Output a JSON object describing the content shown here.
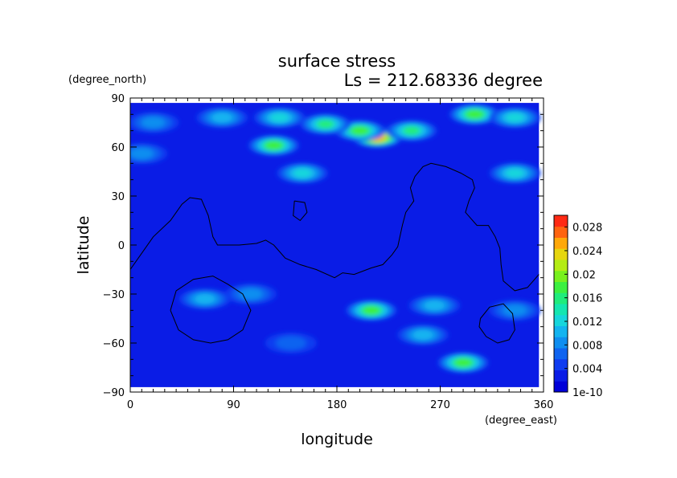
{
  "chart_data": {
    "type": "heatmap",
    "title": "surface stress",
    "subtitle": "Ls = 212.68336 degree",
    "xlabel": "longitude",
    "ylabel": "latitude",
    "x_units": "(degree_east)",
    "y_units": "(degree_north)",
    "xlim": [
      0,
      360
    ],
    "ylim": [
      -90,
      90
    ],
    "x_ticks": [
      0,
      90,
      180,
      270,
      360
    ],
    "x_tick_labels": [
      "0",
      "90",
      "180",
      "270",
      "360"
    ],
    "y_ticks": [
      90,
      60,
      30,
      0,
      -30,
      -60,
      -90
    ],
    "y_tick_labels": [
      "90",
      "60",
      "30",
      "0",
      "−30",
      "−60",
      "−90"
    ],
    "data_extent": {
      "lon": [
        0,
        356
      ],
      "lat": [
        -87,
        87
      ]
    },
    "colorbar": {
      "min": 0,
      "max": 0.03,
      "ticks": [
        0,
        0.004,
        0.008,
        0.012,
        0.016,
        0.02,
        0.024,
        0.028
      ],
      "tick_labels": [
        "1e-10",
        "0.004",
        "0.008",
        "0.012",
        "0.016",
        "0.02",
        "0.024",
        "0.028"
      ],
      "colors": [
        "#0000d8",
        "#0a1ce6",
        "#0f3cf0",
        "#0f64f0",
        "#0f8ef0",
        "#13b4f0",
        "#16d6dc",
        "#14e6b0",
        "#20ec7c",
        "#3cf040",
        "#78f01e",
        "#b4ec14",
        "#e6d60f",
        "#ffa80a",
        "#ff6410",
        "#ff2a14"
      ]
    },
    "grid": false,
    "hotspots": [
      {
        "lon": 215,
        "lat": 66,
        "value": 0.025
      },
      {
        "lon": 200,
        "lat": 70,
        "value": 0.017
      },
      {
        "lon": 245,
        "lat": 70,
        "value": 0.014
      },
      {
        "lon": 170,
        "lat": 74,
        "value": 0.015
      },
      {
        "lon": 130,
        "lat": 78,
        "value": 0.012
      },
      {
        "lon": 80,
        "lat": 78,
        "value": 0.01
      },
      {
        "lon": 20,
        "lat": 75,
        "value": 0.009
      },
      {
        "lon": 300,
        "lat": 80,
        "value": 0.016
      },
      {
        "lon": 335,
        "lat": 78,
        "value": 0.013
      },
      {
        "lon": 125,
        "lat": 61,
        "value": 0.018
      },
      {
        "lon": 150,
        "lat": 44,
        "value": 0.012
      },
      {
        "lon": 335,
        "lat": 44,
        "value": 0.012
      },
      {
        "lon": 10,
        "lat": 56,
        "value": 0.008
      },
      {
        "lon": 65,
        "lat": -33,
        "value": 0.01
      },
      {
        "lon": 105,
        "lat": -30,
        "value": 0.009
      },
      {
        "lon": 210,
        "lat": -40,
        "value": 0.016
      },
      {
        "lon": 265,
        "lat": -37,
        "value": 0.01
      },
      {
        "lon": 255,
        "lat": -55,
        "value": 0.011
      },
      {
        "lon": 290,
        "lat": -72,
        "value": 0.017
      },
      {
        "lon": 335,
        "lat": -40,
        "value": 0.008
      },
      {
        "lon": 140,
        "lat": -60,
        "value": 0.007
      }
    ],
    "coastlines": [
      [
        [
          0,
          -15
        ],
        [
          10,
          -5
        ],
        [
          20,
          5
        ],
        [
          35,
          15
        ],
        [
          45,
          25
        ],
        [
          52,
          29
        ],
        [
          62,
          28
        ],
        [
          68,
          18
        ],
        [
          72,
          5
        ],
        [
          76,
          0
        ],
        [
          95,
          0
        ],
        [
          110,
          1
        ],
        [
          118,
          3
        ],
        [
          125,
          0
        ],
        [
          135,
          -8
        ],
        [
          148,
          -12
        ],
        [
          162,
          -15
        ],
        [
          178,
          -20
        ],
        [
          185,
          -17
        ],
        [
          195,
          -18
        ],
        [
          210,
          -14
        ],
        [
          220,
          -12
        ],
        [
          228,
          -6
        ],
        [
          233,
          -1
        ],
        [
          237,
          12
        ],
        [
          240,
          20
        ],
        [
          247,
          27
        ],
        [
          244,
          35
        ],
        [
          248,
          42
        ],
        [
          255,
          48
        ],
        [
          262,
          50
        ],
        [
          275,
          48
        ],
        [
          288,
          44
        ],
        [
          298,
          40
        ],
        [
          300,
          35
        ],
        [
          295,
          27
        ],
        [
          292,
          20
        ],
        [
          302,
          12
        ],
        [
          312,
          12
        ],
        [
          318,
          5
        ],
        [
          322,
          -2
        ],
        [
          323,
          -12
        ],
        [
          325,
          -22
        ],
        [
          335,
          -28
        ],
        [
          346,
          -26
        ],
        [
          356,
          -18
        ]
      ],
      [
        [
          143,
          27
        ],
        [
          152,
          26
        ],
        [
          154,
          20
        ],
        [
          148,
          15
        ],
        [
          142,
          18
        ],
        [
          143,
          27
        ]
      ],
      [
        [
          35,
          -40
        ],
        [
          40,
          -28
        ],
        [
          55,
          -21
        ],
        [
          72,
          -19
        ],
        [
          85,
          -24
        ],
        [
          98,
          -30
        ],
        [
          105,
          -40
        ],
        [
          98,
          -52
        ],
        [
          85,
          -58
        ],
        [
          70,
          -60
        ],
        [
          55,
          -58
        ],
        [
          42,
          -52
        ],
        [
          35,
          -40
        ]
      ],
      [
        [
          305,
          -45
        ],
        [
          313,
          -38
        ],
        [
          325,
          -36
        ],
        [
          333,
          -42
        ],
        [
          335,
          -52
        ],
        [
          330,
          -58
        ],
        [
          320,
          -60
        ],
        [
          310,
          -56
        ],
        [
          304,
          -50
        ],
        [
          305,
          -45
        ]
      ]
    ]
  }
}
